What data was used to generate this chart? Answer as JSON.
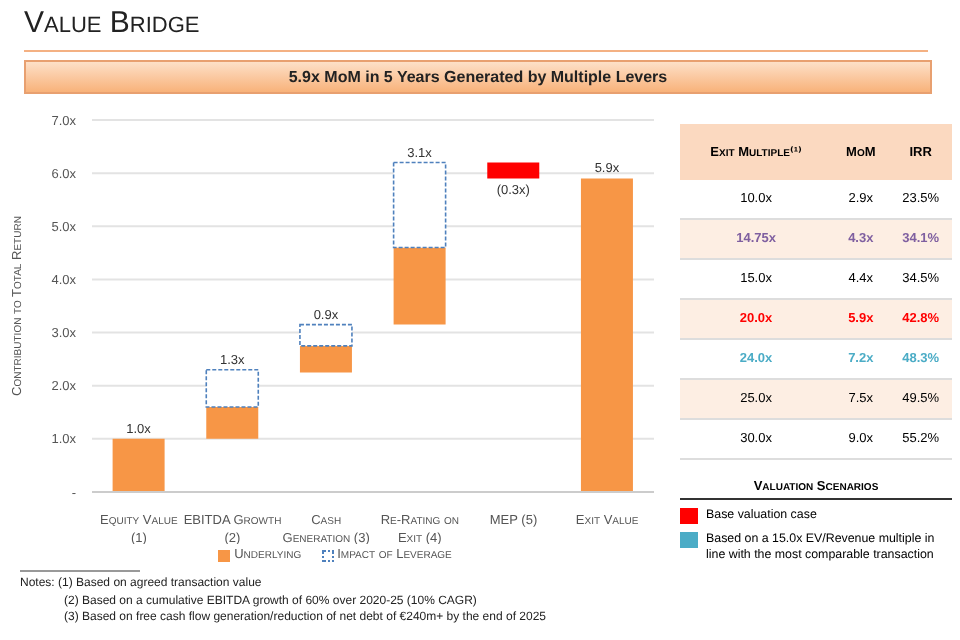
{
  "chart_data": [
    {
      "type": "bar",
      "title": "Value Bridge",
      "subtitle": "5.9x MoM in 5 Years Generated by Multiple Levers",
      "ylabel": "Contribution to Total Return",
      "categories": [
        "Equity Value (1)",
        "EBITDA Growth (2)",
        "Cash Generation (3)",
        "Re-Rating on Exit (4)",
        "MEP (5)",
        "Exit Value"
      ],
      "series": [
        {
          "name": "Underlying",
          "color": "#f79646",
          "base": [
            0,
            1.0,
            2.25,
            3.15,
            null,
            0
          ],
          "values": [
            1.0,
            0.6,
            0.5,
            1.45,
            null,
            5.9
          ]
        },
        {
          "name": "Impact of Leverage",
          "color": "#ffffff",
          "base": [
            null,
            1.6,
            2.75,
            4.6,
            null,
            null
          ],
          "values": [
            null,
            0.7,
            0.4,
            1.6,
            null,
            null
          ]
        },
        {
          "color": "#ff0000",
          "base": [
            null,
            null,
            null,
            null,
            6.2,
            null
          ],
          "values": [
            null,
            null,
            null,
            null,
            -0.3,
            null
          ]
        }
      ],
      "totals": [
        "1.0x",
        "1.3x",
        "0.9x",
        "3.1x",
        "(0.3x)",
        "5.9x"
      ],
      "ylim": [
        0,
        7
      ],
      "yticks": [
        {
          "value": 0,
          "label": "-"
        },
        {
          "value": 1,
          "label": "1.0x"
        },
        {
          "value": 2,
          "label": "2.0x"
        },
        {
          "value": 3,
          "label": "3.0x"
        },
        {
          "value": 4,
          "label": "4.0x"
        },
        {
          "value": 5,
          "label": "5.0x"
        },
        {
          "value": 6,
          "label": "6.0x"
        },
        {
          "value": 7,
          "label": "7.0x"
        }
      ],
      "grid": "y",
      "legend": "bottom",
      "annotations": [
        "Notes: (1) Based on agreed transaction value",
        "(2) Based on a cumulative EBITDA growth of 60% over 2020-25 (10% CAGR)",
        "(3) Based on free cash flow generation/reduction of net debt of €240m+ by the end of 2025"
      ]
    },
    {
      "type": "other",
      "legend_title": "Valuation Scenarios",
      "annotations": [
        "Exit Multiple⁽¹⁾",
        "MoM",
        "IRR",
        "10.0x",
        "2.9x",
        "23.5%",
        "14.75x",
        "4.3x",
        "34.1%",
        "15.0x",
        "4.4x",
        "34.5%",
        "20.0x",
        "5.9x",
        "42.8%",
        "24.0x",
        "7.2x",
        "48.3%",
        "25.0x",
        "7.5x",
        "49.5%",
        "30.0x",
        "9.0x",
        "55.2%"
      ],
      "colors": [
        "#000000",
        "#7f5fa0",
        "#000000",
        "#ff0000",
        "#4bacc6",
        "#000000",
        "#000000"
      ],
      "series": [
        {
          "name": "Base valuation case",
          "color": "#ff0000"
        },
        {
          "name": "Based on a 15.0x EV/Revenue multiple in line with the most comparable transaction",
          "color": "#4bacc6"
        }
      ]
    }
  ]
}
